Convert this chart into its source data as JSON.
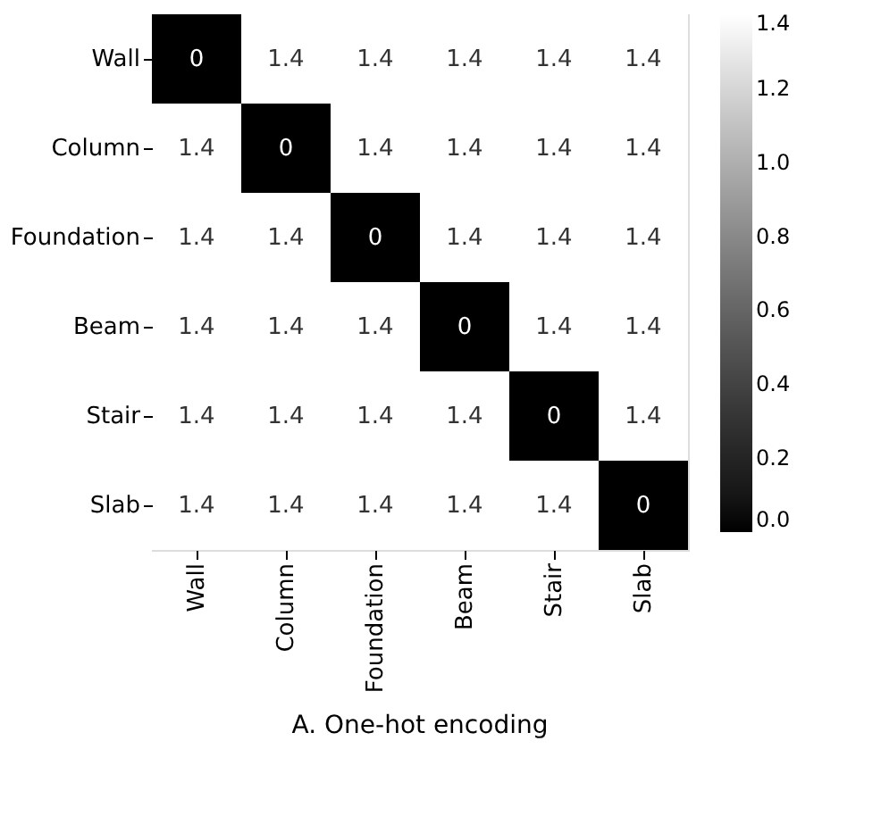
{
  "chart_data": {
    "type": "heatmap",
    "title": "A. One-hot encoding",
    "categories": [
      "Wall",
      "Column",
      "Foundation",
      "Beam",
      "Stair",
      "Slab"
    ],
    "y_categories": [
      "Wall",
      "Column",
      "Foundation",
      "Beam",
      "Stair",
      "Slab"
    ],
    "cells": [
      [
        0,
        1.4,
        1.4,
        1.4,
        1.4,
        1.4
      ],
      [
        1.4,
        0,
        1.4,
        1.4,
        1.4,
        1.4
      ],
      [
        1.4,
        1.4,
        0,
        1.4,
        1.4,
        1.4
      ],
      [
        1.4,
        1.4,
        1.4,
        0,
        1.4,
        1.4
      ],
      [
        1.4,
        1.4,
        1.4,
        1.4,
        0,
        1.4
      ],
      [
        1.4,
        1.4,
        1.4,
        1.4,
        1.4,
        0
      ]
    ],
    "data_labels": true,
    "clim": [
      0,
      1.4
    ],
    "cticks": [
      {
        "value": 0,
        "label": "0.0"
      },
      0.2,
      0.4,
      0.6,
      0.8,
      {
        "value": 1,
        "label": "1.0"
      },
      1.2,
      1.4
    ],
    "colors": [
      "#000000",
      "#ffffff"
    ]
  }
}
